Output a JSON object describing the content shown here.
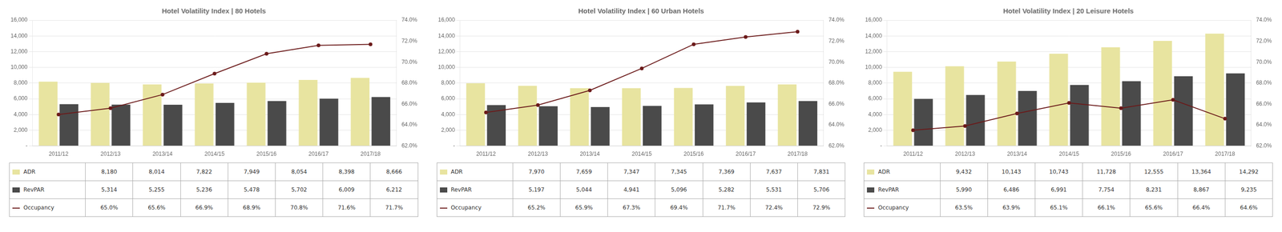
{
  "chart_data": [
    {
      "type": "bar",
      "title": "Hotel Volatility Index | 80 Hotels",
      "categories": [
        "2011/12",
        "2012/13",
        "2013/14",
        "2014/15",
        "2015/16",
        "2016/17",
        "2017/18"
      ],
      "series": [
        {
          "name": "ADR",
          "color": "#e8e4a0",
          "values": [
            8180,
            8014,
            7822,
            7949,
            8054,
            8398,
            8666
          ],
          "value_labels": [
            "8,180",
            "8,014",
            "7,822",
            "7,949",
            "8,054",
            "8,398",
            "8,666"
          ]
        },
        {
          "name": "RevPAR",
          "color": "#4a4a4a",
          "values": [
            5314,
            5255,
            5236,
            5478,
            5702,
            6009,
            6212
          ],
          "value_labels": [
            "5,314",
            "5,255",
            "5,236",
            "5,478",
            "5,702",
            "6,009",
            "6,212"
          ]
        },
        {
          "name": "Occupancy",
          "type": "line",
          "axis": "y2",
          "color": "#6b1a1a",
          "marker": "circle",
          "values": [
            65.0,
            65.6,
            66.9,
            68.9,
            70.8,
            71.6,
            71.7
          ],
          "value_labels": [
            "65.0%",
            "65.6%",
            "66.9%",
            "68.9%",
            "70.8%",
            "71.6%",
            "71.7%"
          ]
        }
      ],
      "ylim": [
        0,
        16000
      ],
      "yticks": [
        {
          "value": 0,
          "label": "-"
        },
        {
          "value": 2000,
          "label": "2,000"
        },
        {
          "value": 4000,
          "label": "4,000"
        },
        {
          "value": 6000,
          "label": "6,000"
        },
        {
          "value": 8000,
          "label": "8,000"
        },
        {
          "value": 10000,
          "label": "10,000"
        },
        {
          "value": 12000,
          "label": "12,000"
        },
        {
          "value": 14000,
          "label": "14,000"
        },
        {
          "value": 16000,
          "label": "16,000"
        }
      ],
      "y2lim": [
        62.0,
        74.0
      ],
      "y2ticks": [
        {
          "value": 62.0,
          "label": "62.0%"
        },
        {
          "value": 64.0,
          "label": "64.0%"
        },
        {
          "value": 66.0,
          "label": "66.0%"
        },
        {
          "value": 68.0,
          "label": "68.0%"
        },
        {
          "value": 70.0,
          "label": "70.0%"
        },
        {
          "value": 72.0,
          "label": "72.0%"
        },
        {
          "value": 74.0,
          "label": "74.0%"
        }
      ],
      "grid": true
    },
    {
      "type": "bar",
      "title": "Hotel Volatility Index | 60 Urban Hotels",
      "categories": [
        "2011/12",
        "2012/13",
        "2013/14",
        "2014/15",
        "2015/16",
        "2016/17",
        "2017/18"
      ],
      "series": [
        {
          "name": "ADR",
          "color": "#e8e4a0",
          "values": [
            7970,
            7659,
            7347,
            7345,
            7369,
            7637,
            7831
          ],
          "value_labels": [
            "7,970",
            "7,659",
            "7,347",
            "7,345",
            "7,369",
            "7,637",
            "7,831"
          ]
        },
        {
          "name": "RevPAR",
          "color": "#4a4a4a",
          "values": [
            5197,
            5044,
            4941,
            5096,
            5282,
            5531,
            5706
          ],
          "value_labels": [
            "5,197",
            "5,044",
            "4,941",
            "5,096",
            "5,282",
            "5,531",
            "5,706"
          ]
        },
        {
          "name": "Occupancy",
          "type": "line",
          "axis": "y2",
          "color": "#6b1a1a",
          "marker": "circle",
          "values": [
            65.2,
            65.9,
            67.3,
            69.4,
            71.7,
            72.4,
            72.9
          ],
          "value_labels": [
            "65.2%",
            "65.9%",
            "67.3%",
            "69.4%",
            "71.7%",
            "72.4%",
            "72.9%"
          ]
        }
      ],
      "ylim": [
        0,
        16000
      ],
      "yticks": [
        {
          "value": 0,
          "label": "-"
        },
        {
          "value": 2000,
          "label": "2,000"
        },
        {
          "value": 4000,
          "label": "4,000"
        },
        {
          "value": 6000,
          "label": "6,000"
        },
        {
          "value": 8000,
          "label": "8,000"
        },
        {
          "value": 10000,
          "label": "10,000"
        },
        {
          "value": 12000,
          "label": "12,000"
        },
        {
          "value": 14000,
          "label": "14,000"
        },
        {
          "value": 16000,
          "label": "16,000"
        }
      ],
      "y2lim": [
        62.0,
        74.0
      ],
      "y2ticks": [
        {
          "value": 62.0,
          "label": "62.0%"
        },
        {
          "value": 64.0,
          "label": "64.0%"
        },
        {
          "value": 66.0,
          "label": "66.0%"
        },
        {
          "value": 68.0,
          "label": "68.0%"
        },
        {
          "value": 70.0,
          "label": "70.0%"
        },
        {
          "value": 72.0,
          "label": "72.0%"
        },
        {
          "value": 74.0,
          "label": "74.0%"
        }
      ],
      "grid": true
    },
    {
      "type": "bar",
      "title": "Hotel Volatility Index | 20 Leisure Hotels",
      "categories": [
        "2011/12",
        "2012/13",
        "2013/14",
        "2014/15",
        "2015/16",
        "2016/17",
        "2017/18"
      ],
      "series": [
        {
          "name": "ADR",
          "color": "#e8e4a0",
          "values": [
            9432,
            10143,
            10743,
            11728,
            12555,
            13364,
            14292
          ],
          "value_labels": [
            "9,432",
            "10,143",
            "10,743",
            "11,728",
            "12,555",
            "13,364",
            "14,292"
          ]
        },
        {
          "name": "RevPAR",
          "color": "#4a4a4a",
          "values": [
            5990,
            6486,
            6991,
            7754,
            8231,
            8867,
            9235
          ],
          "value_labels": [
            "5,990",
            "6,486",
            "6,991",
            "7,754",
            "8,231",
            "8,867",
            "9,235"
          ]
        },
        {
          "name": "Occupancy",
          "type": "line",
          "axis": "y2",
          "color": "#6b1a1a",
          "marker": "circle",
          "values": [
            63.5,
            63.9,
            65.1,
            66.1,
            65.6,
            66.4,
            64.6
          ],
          "value_labels": [
            "63.5%",
            "63.9%",
            "65.1%",
            "66.1%",
            "65.6%",
            "66.4%",
            "64.6%"
          ]
        }
      ],
      "ylim": [
        0,
        16000
      ],
      "yticks": [
        {
          "value": 0,
          "label": "-"
        },
        {
          "value": 2000,
          "label": "2,000"
        },
        {
          "value": 4000,
          "label": "4,000"
        },
        {
          "value": 6000,
          "label": "6,000"
        },
        {
          "value": 8000,
          "label": "8,000"
        },
        {
          "value": 10000,
          "label": "10,000"
        },
        {
          "value": 12000,
          "label": "12,000"
        },
        {
          "value": 14000,
          "label": "14,000"
        },
        {
          "value": 16000,
          "label": "16,000"
        }
      ],
      "y2lim": [
        62.0,
        74.0
      ],
      "y2ticks": [
        {
          "value": 62.0,
          "label": "62.0%"
        },
        {
          "value": 64.0,
          "label": "64.0%"
        },
        {
          "value": 66.0,
          "label": "66.0%"
        },
        {
          "value": 68.0,
          "label": "68.0%"
        },
        {
          "value": 70.0,
          "label": "70.0%"
        },
        {
          "value": 72.0,
          "label": "72.0%"
        },
        {
          "value": 74.0,
          "label": "74.0%"
        }
      ],
      "grid": true
    }
  ]
}
